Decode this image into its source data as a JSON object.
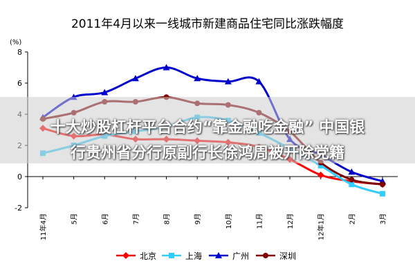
{
  "chart_data": {
    "type": "line",
    "title": "2011年4月以来一线城市新建商品住宅同比涨跌幅度",
    "ylabel": "(%)",
    "xlabel": "",
    "ylim": [
      -2,
      8
    ],
    "yticks": [
      -2,
      0,
      2,
      4,
      6,
      8
    ],
    "categories": [
      "11年4月",
      "5月",
      "6月",
      "7月",
      "8月",
      "9月",
      "10月",
      "11月",
      "12月",
      "12年1月",
      "2月",
      "3月"
    ],
    "grid": false,
    "legend_position": "bottom",
    "series": [
      {
        "name": "北京",
        "color": "#FF0000",
        "marker": "diamond",
        "values": [
          3.1,
          2.6,
          2.7,
          2.4,
          2.4,
          2.3,
          2.2,
          1.9,
          1.1,
          0.1,
          -0.3,
          -0.5
        ]
      },
      {
        "name": "上海",
        "color": "#33CCFF",
        "marker": "square",
        "values": [
          1.5,
          2.0,
          2.6,
          2.9,
          3.2,
          3.8,
          3.6,
          2.8,
          1.8,
          0.7,
          -0.5,
          -1.1
        ]
      },
      {
        "name": "广州",
        "color": "#0000CC",
        "marker": "triangle",
        "values": [
          3.8,
          5.1,
          5.4,
          6.3,
          7.0,
          6.3,
          6.1,
          6.1,
          2.4,
          1.4,
          0.3,
          -0.3
        ]
      },
      {
        "name": "深圳",
        "color": "#800000",
        "marker": "circle",
        "values": [
          3.7,
          4.1,
          4.8,
          4.8,
          5.1,
          4.7,
          4.6,
          4.1,
          2.9,
          0.9,
          -0.2,
          -0.5
        ]
      }
    ]
  },
  "overlay": {
    "line1": "十大炒股杠杆平台合约“靠金融吃金融” 中国银",
    "line2": "行贵州省分行原副行长徐鸿周被开除党籍"
  }
}
